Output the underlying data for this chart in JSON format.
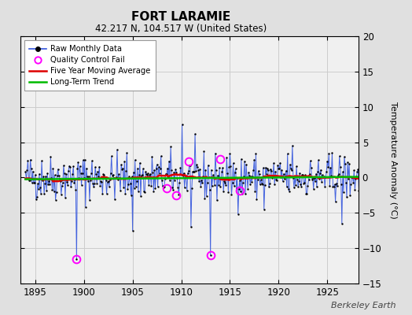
{
  "title": "FORT LARAMIE",
  "subtitle": "42.217 N, 104.517 W (United States)",
  "ylabel": "Temperature Anomaly (°C)",
  "watermark": "Berkeley Earth",
  "xlim": [
    1893.5,
    1928.2
  ],
  "ylim": [
    -15,
    20
  ],
  "yticks": [
    -15,
    -10,
    -5,
    0,
    5,
    10,
    15,
    20
  ],
  "xticks": [
    1895,
    1900,
    1905,
    1910,
    1915,
    1920,
    1925
  ],
  "bg_color": "#e0e0e0",
  "plot_bg_color": "#f0f0f0",
  "raw_color": "#3355dd",
  "raw_marker_color": "#000000",
  "ma_color": "#dd0000",
  "trend_color": "#00bb00",
  "qc_color": "#ff00ff",
  "seed": 42,
  "qc_points": [
    [
      1899.25,
      -11.5
    ],
    [
      1908.5,
      -1.5
    ],
    [
      1909.5,
      -2.5
    ],
    [
      1910.75,
      2.3
    ],
    [
      1913.0,
      -11.0
    ],
    [
      1914.0,
      2.6
    ],
    [
      1916.0,
      -1.8
    ]
  ]
}
